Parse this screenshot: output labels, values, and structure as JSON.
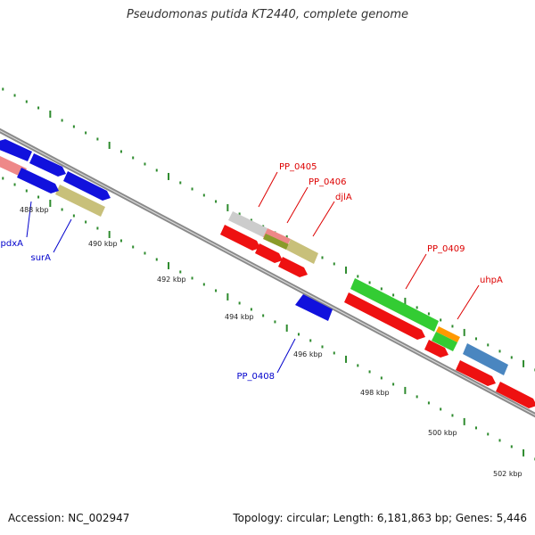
{
  "title": "Pseudomonas putida KT2440, complete genome",
  "footer": {
    "accession": "Accession: NC_002947",
    "topology": "Topology: circular; Length: 6,181,863 bp; Genes: 5,446"
  },
  "colors": {
    "backbone": "#888888",
    "ticks": "#2e8b2e",
    "forward_label": "#dd0000",
    "reverse_label": "#0000cc",
    "cds_red": "#ee1111",
    "cds_blue": "#1111dd",
    "cds_green": "#33cc33",
    "cds_khaki": "#c8c07a",
    "cds_pink": "#ee8888",
    "cds_grey": "#cccccc",
    "cds_orange": "#ff9900",
    "cds_steelblue": "#4a86c0"
  },
  "scale_labels": [
    "488 kbp",
    "490 kbp",
    "492 kbp",
    "494 kbp",
    "496 kbp",
    "498 kbp",
    "500 kbp",
    "502 kbp"
  ],
  "gene_labels": {
    "forward": [
      "PP_0405",
      "PP_0406",
      "djlA",
      "PP_0409",
      "uhpA"
    ],
    "reverse": [
      "pdxA",
      "surA",
      "PP_0408"
    ]
  }
}
